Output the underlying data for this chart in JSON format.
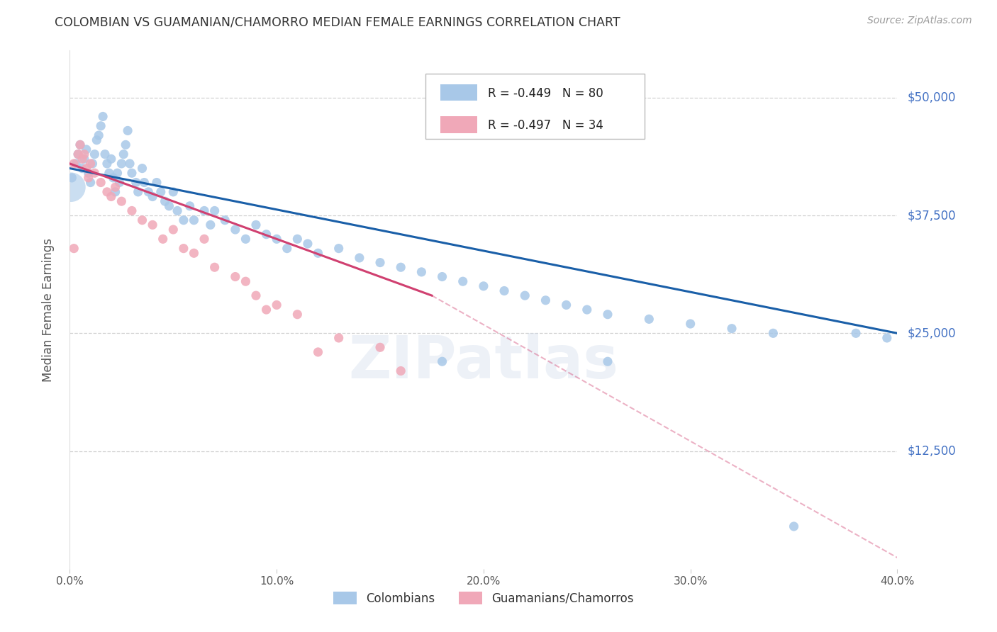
{
  "title": "COLOMBIAN VS GUAMANIAN/CHAMORRO MEDIAN FEMALE EARNINGS CORRELATION CHART",
  "source": "Source: ZipAtlas.com",
  "ylabel": "Median Female Earnings",
  "xlabel_ticks": [
    "0.0%",
    "10.0%",
    "20.0%",
    "30.0%",
    "40.0%"
  ],
  "xlabel_vals": [
    0.0,
    0.1,
    0.2,
    0.3,
    0.4
  ],
  "ytick_labels": [
    "$12,500",
    "$25,000",
    "$37,500",
    "$50,000"
  ],
  "ytick_vals": [
    12500,
    25000,
    37500,
    50000
  ],
  "ylim": [
    0,
    55000
  ],
  "xlim": [
    0.0,
    0.4
  ],
  "watermark": "ZIPatlas",
  "legend_colombians": "Colombians",
  "legend_guamanians": "Guamanians/Chamorros",
  "R_colombians": -0.449,
  "N_colombians": 80,
  "R_guamanians": -0.497,
  "N_guamanians": 34,
  "blue_color": "#a8c8e8",
  "blue_line_color": "#1a5fa8",
  "pink_color": "#f0a8b8",
  "pink_line_color": "#d04070",
  "blue_scatter": [
    [
      0.001,
      41500
    ],
    [
      0.003,
      43000
    ],
    [
      0.004,
      44000
    ],
    [
      0.005,
      45000
    ],
    [
      0.006,
      42500
    ],
    [
      0.007,
      43500
    ],
    [
      0.008,
      44500
    ],
    [
      0.009,
      42000
    ],
    [
      0.01,
      41000
    ],
    [
      0.011,
      43000
    ],
    [
      0.012,
      44000
    ],
    [
      0.013,
      45500
    ],
    [
      0.014,
      46000
    ],
    [
      0.015,
      47000
    ],
    [
      0.016,
      48000
    ],
    [
      0.017,
      44000
    ],
    [
      0.018,
      43000
    ],
    [
      0.019,
      42000
    ],
    [
      0.02,
      43500
    ],
    [
      0.021,
      41500
    ],
    [
      0.022,
      40000
    ],
    [
      0.023,
      42000
    ],
    [
      0.024,
      41000
    ],
    [
      0.025,
      43000
    ],
    [
      0.026,
      44000
    ],
    [
      0.027,
      45000
    ],
    [
      0.028,
      46500
    ],
    [
      0.029,
      43000
    ],
    [
      0.03,
      42000
    ],
    [
      0.032,
      41000
    ],
    [
      0.033,
      40000
    ],
    [
      0.035,
      42500
    ],
    [
      0.036,
      41000
    ],
    [
      0.038,
      40000
    ],
    [
      0.04,
      39500
    ],
    [
      0.042,
      41000
    ],
    [
      0.044,
      40000
    ],
    [
      0.046,
      39000
    ],
    [
      0.048,
      38500
    ],
    [
      0.05,
      40000
    ],
    [
      0.052,
      38000
    ],
    [
      0.055,
      37000
    ],
    [
      0.058,
      38500
    ],
    [
      0.06,
      37000
    ],
    [
      0.065,
      38000
    ],
    [
      0.068,
      36500
    ],
    [
      0.07,
      38000
    ],
    [
      0.075,
      37000
    ],
    [
      0.08,
      36000
    ],
    [
      0.085,
      35000
    ],
    [
      0.09,
      36500
    ],
    [
      0.095,
      35500
    ],
    [
      0.1,
      35000
    ],
    [
      0.105,
      34000
    ],
    [
      0.11,
      35000
    ],
    [
      0.115,
      34500
    ],
    [
      0.12,
      33500
    ],
    [
      0.13,
      34000
    ],
    [
      0.14,
      33000
    ],
    [
      0.15,
      32500
    ],
    [
      0.16,
      32000
    ],
    [
      0.17,
      31500
    ],
    [
      0.18,
      31000
    ],
    [
      0.19,
      30500
    ],
    [
      0.2,
      30000
    ],
    [
      0.21,
      29500
    ],
    [
      0.22,
      29000
    ],
    [
      0.23,
      28500
    ],
    [
      0.24,
      28000
    ],
    [
      0.25,
      27500
    ],
    [
      0.26,
      27000
    ],
    [
      0.28,
      26500
    ],
    [
      0.3,
      26000
    ],
    [
      0.32,
      25500
    ],
    [
      0.34,
      25000
    ],
    [
      0.18,
      22000
    ],
    [
      0.26,
      22000
    ],
    [
      0.35,
      4500
    ],
    [
      0.38,
      25000
    ],
    [
      0.395,
      24500
    ]
  ],
  "pink_scatter": [
    [
      0.002,
      43000
    ],
    [
      0.004,
      44000
    ],
    [
      0.005,
      45000
    ],
    [
      0.006,
      43500
    ],
    [
      0.007,
      44000
    ],
    [
      0.008,
      42500
    ],
    [
      0.009,
      41500
    ],
    [
      0.01,
      43000
    ],
    [
      0.012,
      42000
    ],
    [
      0.015,
      41000
    ],
    [
      0.018,
      40000
    ],
    [
      0.02,
      39500
    ],
    [
      0.022,
      40500
    ],
    [
      0.025,
      39000
    ],
    [
      0.03,
      38000
    ],
    [
      0.035,
      37000
    ],
    [
      0.04,
      36500
    ],
    [
      0.045,
      35000
    ],
    [
      0.05,
      36000
    ],
    [
      0.055,
      34000
    ],
    [
      0.06,
      33500
    ],
    [
      0.065,
      35000
    ],
    [
      0.07,
      32000
    ],
    [
      0.08,
      31000
    ],
    [
      0.085,
      30500
    ],
    [
      0.09,
      29000
    ],
    [
      0.095,
      27500
    ],
    [
      0.1,
      28000
    ],
    [
      0.11,
      27000
    ],
    [
      0.12,
      23000
    ],
    [
      0.13,
      24500
    ],
    [
      0.15,
      23500
    ],
    [
      0.002,
      34000
    ],
    [
      0.16,
      21000
    ]
  ],
  "grid_color": "#cccccc",
  "background_color": "#ffffff",
  "title_color": "#333333",
  "axis_label_color": "#555555",
  "ytick_color": "#4472c4",
  "xtick_color": "#555555"
}
